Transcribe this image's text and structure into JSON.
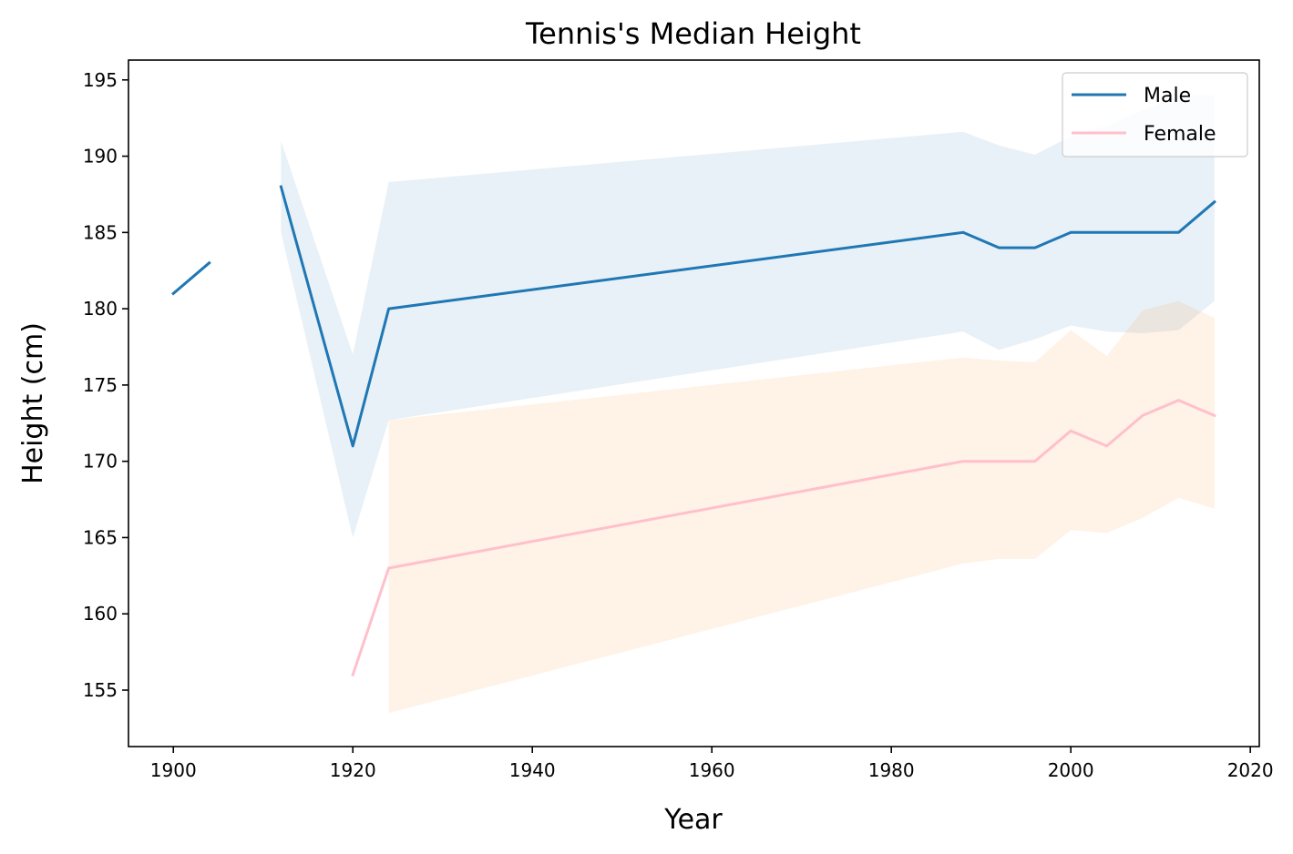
{
  "chart_data": {
    "type": "line",
    "title": "Tennis's Median Height",
    "xlabel": "Year",
    "ylabel": "Height (cm)",
    "xlim": [
      1895,
      2021
    ],
    "ylim": [
      151.3,
      196.3
    ],
    "xticks": [
      1900,
      1920,
      1940,
      1960,
      1980,
      2000,
      2020
    ],
    "yticks": [
      155,
      160,
      165,
      170,
      175,
      180,
      185,
      190,
      195
    ],
    "grid": false,
    "legend_position": "top-right",
    "series": [
      {
        "name": "Male",
        "color": "#1f77b4",
        "band_color": "#1f77b4",
        "segments": [
          {
            "x": [
              1900,
              1904
            ],
            "y": [
              181,
              183
            ]
          },
          {
            "x": [
              1912,
              1920,
              1924,
              1988,
              1992,
              1996,
              2000,
              2004,
              2008,
              2012,
              2016
            ],
            "y": [
              188,
              171,
              180,
              185,
              184,
              184,
              185,
              185,
              185,
              185,
              187
            ],
            "band_low": [
              185,
              165,
              172.7,
              178.5,
              177.3,
              178,
              178.9,
              178.5,
              178.4,
              178.6,
              180.5
            ],
            "band_high": [
              191,
              177,
              188.3,
              191.6,
              190.7,
              190.1,
              191.3,
              192,
              193,
              194,
              194
            ]
          }
        ]
      },
      {
        "name": "Female",
        "color": "#ffc0cb",
        "band_color": "#ff7f0e",
        "segments": [
          {
            "x": [
              1920,
              1924,
              1988,
              1992,
              1996,
              2000,
              2004,
              2008,
              2012,
              2016
            ],
            "y": [
              156,
              163,
              170,
              170,
              170,
              172,
              171,
              173,
              174,
              173
            ],
            "band_low": [
              null,
              153.5,
              163.3,
              163.6,
              163.6,
              165.5,
              165.3,
              166.3,
              167.6,
              166.9
            ],
            "band_high": [
              null,
              172.7,
              176.8,
              176.6,
              176.5,
              178.6,
              176.9,
              179.9,
              180.5,
              179.4
            ]
          }
        ]
      }
    ]
  }
}
